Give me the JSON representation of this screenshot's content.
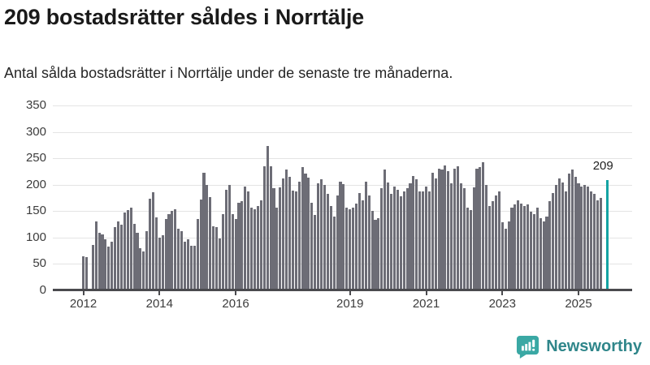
{
  "header": {
    "title": "209 bostadsrätter såldes i Norrtälje",
    "subtitle": "Antal sålda bostadsrätter i Norrtälje under de senaste tre månaderna."
  },
  "chart_data": {
    "type": "bar",
    "title": "209 bostadsrätter såldes i Norrtälje",
    "subtitle": "Antal sålda bostadsrätter i Norrtälje under de senaste tre månaderna.",
    "ylabel": "",
    "xlabel": "",
    "ylim": [
      0,
      350
    ],
    "grid": true,
    "frequency": "monthly",
    "x_start": "2012-01",
    "x_end": "2025-10",
    "yticks": [
      0,
      50,
      100,
      150,
      200,
      250,
      300,
      350
    ],
    "xticks": [
      {
        "label": "2012",
        "month_index": 0
      },
      {
        "label": "2014",
        "month_index": 24
      },
      {
        "label": "2016",
        "month_index": 48
      },
      {
        "label": "2019",
        "month_index": 84
      },
      {
        "label": "2021",
        "month_index": 108
      },
      {
        "label": "2023",
        "month_index": 132
      },
      {
        "label": "2025",
        "month_index": 156
      }
    ],
    "bar_color": "#6d6d76",
    "highlight_color": "#14a3a3",
    "highlight_index": 165,
    "annotation": {
      "label": "209",
      "value": 209
    },
    "values": [
      65,
      63,
      null,
      86,
      130,
      109,
      106,
      96,
      83,
      92,
      120,
      130,
      125,
      148,
      152,
      157,
      126,
      109,
      80,
      74,
      112,
      174,
      186,
      138,
      100,
      104,
      135,
      145,
      150,
      153,
      116,
      112,
      92,
      96,
      85,
      85,
      135,
      172,
      223,
      199,
      177,
      122,
      120,
      99,
      144,
      191,
      199,
      144,
      135,
      166,
      169,
      197,
      188,
      157,
      154,
      160,
      170,
      235,
      273,
      235,
      194,
      156,
      195,
      212,
      228,
      215,
      189,
      187,
      205,
      233,
      221,
      214,
      166,
      143,
      202,
      211,
      200,
      182,
      160,
      139,
      179,
      205,
      201,
      156,
      153,
      156,
      164,
      184,
      171,
      206,
      179,
      151,
      133,
      137,
      193,
      228,
      204,
      182,
      196,
      190,
      178,
      187,
      193,
      202,
      216,
      210,
      188,
      188,
      197,
      188,
      223,
      212,
      231,
      228,
      236,
      225,
      202,
      230,
      235,
      202,
      194,
      156,
      152,
      195,
      231,
      233,
      243,
      200,
      160,
      169,
      179,
      187,
      129,
      117,
      130,
      156,
      163,
      171,
      165,
      160,
      163,
      149,
      144,
      157,
      137,
      130,
      139,
      169,
      184,
      200,
      212,
      204,
      188,
      221,
      229,
      215,
      202,
      196,
      200,
      197,
      188,
      182,
      171,
      175,
      null,
      209
    ]
  },
  "footer": {
    "brand": "Newsworthy"
  }
}
